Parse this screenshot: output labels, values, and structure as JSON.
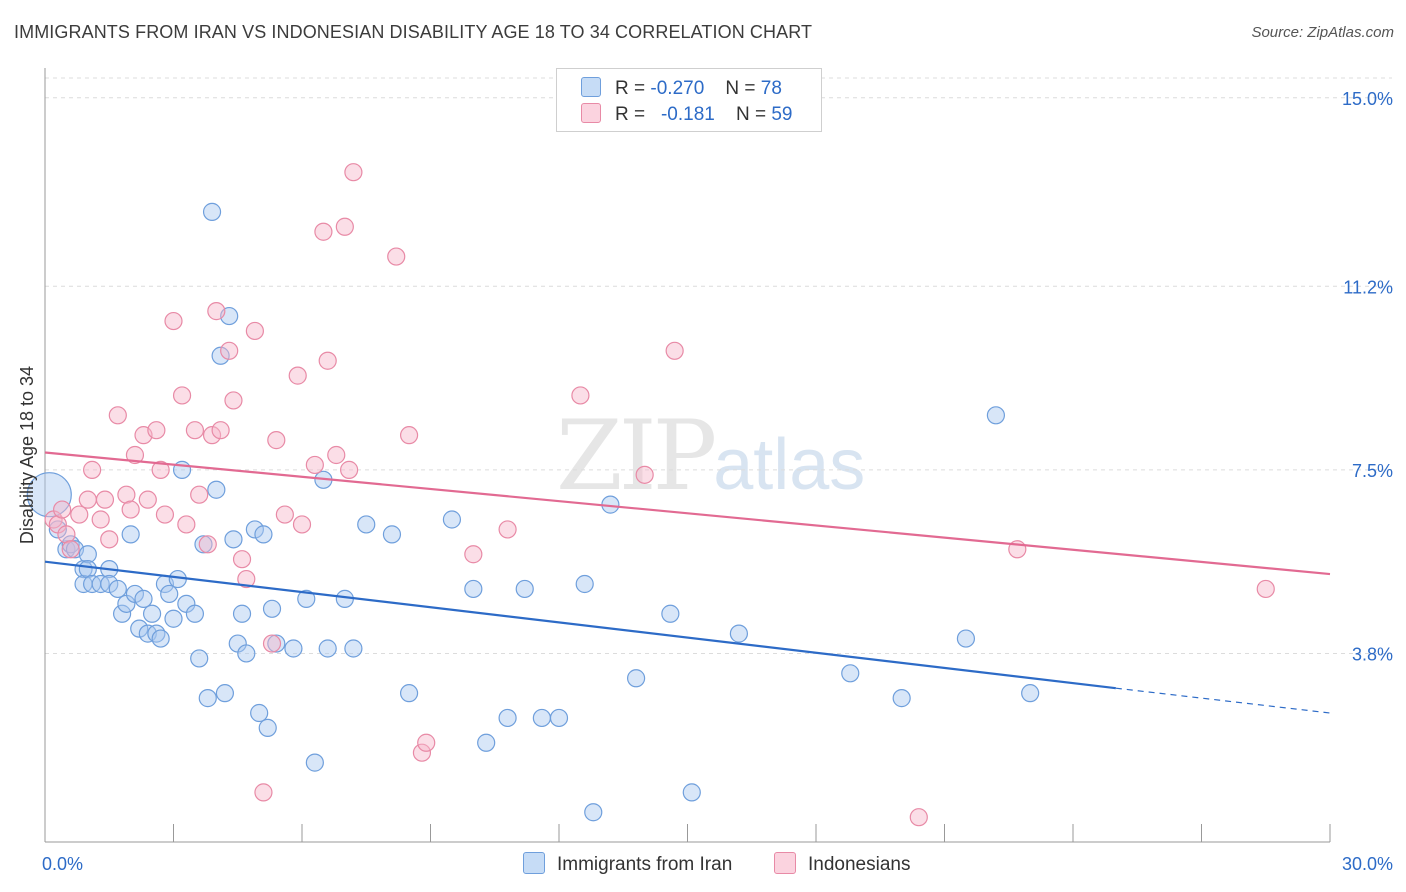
{
  "header": {
    "title": "IMMIGRANTS FROM IRAN VS INDONESIAN DISABILITY AGE 18 TO 34 CORRELATION CHART",
    "source": "Source: ZipAtlas.com"
  },
  "watermark": {
    "zip": "ZIP",
    "atlas": "atlas"
  },
  "legend": {
    "rows": [
      {
        "r_label": "R =",
        "r_value": "-0.270",
        "n_label": "N =",
        "n_value": "78",
        "color": "#a8c8f0"
      },
      {
        "r_label": "R =",
        "r_value": "-0.181",
        "n_label": "N =",
        "n_value": "59",
        "color": "#f7b6c9"
      }
    ]
  },
  "bottom_legend": {
    "items": [
      {
        "label": "Immigrants from Iran",
        "color": "#a8c8f0"
      },
      {
        "label": "Indonesians",
        "color": "#f7b6c9"
      }
    ]
  },
  "chart_data": {
    "type": "scatter",
    "title": "IMMIGRANTS FROM IRAN VS INDONESIAN DISABILITY AGE 18 TO 34 CORRELATION CHART",
    "ylabel": "Disability Age 18 to 34",
    "xlabel": "",
    "xlim": [
      0,
      30
    ],
    "ylim": [
      0,
      15.6
    ],
    "x_tick_labels": [
      {
        "value": 0,
        "label": "0.0%"
      },
      {
        "value": 30,
        "label": "30.0%"
      }
    ],
    "y_tick_labels": [
      {
        "value": 3.8,
        "label": "3.8%"
      },
      {
        "value": 7.5,
        "label": "7.5%"
      },
      {
        "value": 11.2,
        "label": "11.2%"
      },
      {
        "value": 15.0,
        "label": "15.0%"
      }
    ],
    "grid": true,
    "legend_position": "top-center",
    "series": [
      {
        "name": "Immigrants from Iran",
        "color": "#a8c8f0",
        "stroke": "#6f9fdc",
        "line_color": "#2d6bc7",
        "trend": {
          "x": [
            0,
            25.0
          ],
          "y": [
            5.65,
            3.1
          ],
          "dashed_to": [
            30,
            2.6
          ]
        },
        "points": [
          [
            0.1,
            7.0
          ],
          [
            0.3,
            6.3
          ],
          [
            0.5,
            5.9
          ],
          [
            0.6,
            6.0
          ],
          [
            0.7,
            5.9
          ],
          [
            0.9,
            5.5
          ],
          [
            0.9,
            5.2
          ],
          [
            1.0,
            5.8
          ],
          [
            1.0,
            5.5
          ],
          [
            1.1,
            5.2
          ],
          [
            1.3,
            5.2
          ],
          [
            1.5,
            5.5
          ],
          [
            1.5,
            5.2
          ],
          [
            1.7,
            5.1
          ],
          [
            1.8,
            4.6
          ],
          [
            1.9,
            4.8
          ],
          [
            2.0,
            6.2
          ],
          [
            2.1,
            5.0
          ],
          [
            2.2,
            4.3
          ],
          [
            2.3,
            4.9
          ],
          [
            2.4,
            4.2
          ],
          [
            2.5,
            4.6
          ],
          [
            2.6,
            4.2
          ],
          [
            2.7,
            4.1
          ],
          [
            2.8,
            5.2
          ],
          [
            2.9,
            5.0
          ],
          [
            3.0,
            4.5
          ],
          [
            3.1,
            5.3
          ],
          [
            3.2,
            7.5
          ],
          [
            3.3,
            4.8
          ],
          [
            3.5,
            4.6
          ],
          [
            3.6,
            3.7
          ],
          [
            3.7,
            6.0
          ],
          [
            3.8,
            2.9
          ],
          [
            3.9,
            12.7
          ],
          [
            4.0,
            7.1
          ],
          [
            4.1,
            9.8
          ],
          [
            4.2,
            3.0
          ],
          [
            4.3,
            10.6
          ],
          [
            4.4,
            6.1
          ],
          [
            4.5,
            4.0
          ],
          [
            4.6,
            4.6
          ],
          [
            4.7,
            3.8
          ],
          [
            4.9,
            6.3
          ],
          [
            5.0,
            2.6
          ],
          [
            5.1,
            6.2
          ],
          [
            5.2,
            2.3
          ],
          [
            5.3,
            4.7
          ],
          [
            5.4,
            4.0
          ],
          [
            5.8,
            3.9
          ],
          [
            6.1,
            4.9
          ],
          [
            6.3,
            1.6
          ],
          [
            6.5,
            7.3
          ],
          [
            6.6,
            3.9
          ],
          [
            7.0,
            4.9
          ],
          [
            7.2,
            3.9
          ],
          [
            7.5,
            6.4
          ],
          [
            8.1,
            6.2
          ],
          [
            8.5,
            3.0
          ],
          [
            9.5,
            6.5
          ],
          [
            10.0,
            5.1
          ],
          [
            10.3,
            2.0
          ],
          [
            10.8,
            2.5
          ],
          [
            11.2,
            5.1
          ],
          [
            11.6,
            2.5
          ],
          [
            12.0,
            2.5
          ],
          [
            12.6,
            5.2
          ],
          [
            12.8,
            0.6
          ],
          [
            13.2,
            6.8
          ],
          [
            13.8,
            3.3
          ],
          [
            14.6,
            4.6
          ],
          [
            15.1,
            1.0
          ],
          [
            16.2,
            4.2
          ],
          [
            18.8,
            3.4
          ],
          [
            20.0,
            2.9
          ],
          [
            21.5,
            4.1
          ],
          [
            22.2,
            8.6
          ],
          [
            23.0,
            3.0
          ]
        ]
      },
      {
        "name": "Indonesians",
        "color": "#f7b6c9",
        "stroke": "#e88aa6",
        "line_color": "#e26a92",
        "trend": {
          "x": [
            0,
            30
          ],
          "y": [
            7.85,
            5.4
          ]
        },
        "points": [
          [
            0.2,
            6.5
          ],
          [
            0.3,
            6.4
          ],
          [
            0.4,
            6.7
          ],
          [
            0.5,
            6.2
          ],
          [
            0.6,
            5.9
          ],
          [
            0.8,
            6.6
          ],
          [
            1.0,
            6.9
          ],
          [
            1.1,
            7.5
          ],
          [
            1.3,
            6.5
          ],
          [
            1.4,
            6.9
          ],
          [
            1.5,
            6.1
          ],
          [
            1.7,
            8.6
          ],
          [
            1.9,
            7.0
          ],
          [
            2.0,
            6.7
          ],
          [
            2.1,
            7.8
          ],
          [
            2.3,
            8.2
          ],
          [
            2.4,
            6.9
          ],
          [
            2.6,
            8.3
          ],
          [
            2.7,
            7.5
          ],
          [
            2.8,
            6.6
          ],
          [
            3.0,
            10.5
          ],
          [
            3.2,
            9.0
          ],
          [
            3.3,
            6.4
          ],
          [
            3.5,
            8.3
          ],
          [
            3.6,
            7.0
          ],
          [
            3.8,
            6.0
          ],
          [
            3.9,
            8.2
          ],
          [
            4.0,
            10.7
          ],
          [
            4.1,
            8.3
          ],
          [
            4.3,
            9.9
          ],
          [
            4.4,
            8.9
          ],
          [
            4.6,
            5.7
          ],
          [
            4.7,
            5.3
          ],
          [
            4.9,
            10.3
          ],
          [
            5.1,
            1.0
          ],
          [
            5.3,
            4.0
          ],
          [
            5.4,
            8.1
          ],
          [
            5.6,
            6.6
          ],
          [
            5.9,
            9.4
          ],
          [
            6.0,
            6.4
          ],
          [
            6.3,
            7.6
          ],
          [
            6.5,
            12.3
          ],
          [
            6.6,
            9.7
          ],
          [
            6.8,
            7.8
          ],
          [
            7.0,
            12.4
          ],
          [
            7.1,
            7.5
          ],
          [
            7.2,
            13.5
          ],
          [
            8.2,
            11.8
          ],
          [
            8.5,
            8.2
          ],
          [
            8.8,
            1.8
          ],
          [
            8.9,
            2.0
          ],
          [
            10.0,
            5.8
          ],
          [
            10.8,
            6.3
          ],
          [
            12.5,
            9.0
          ],
          [
            14.0,
            7.4
          ],
          [
            14.7,
            9.9
          ],
          [
            20.4,
            0.5
          ],
          [
            22.7,
            5.9
          ],
          [
            28.5,
            5.1
          ]
        ]
      }
    ]
  }
}
